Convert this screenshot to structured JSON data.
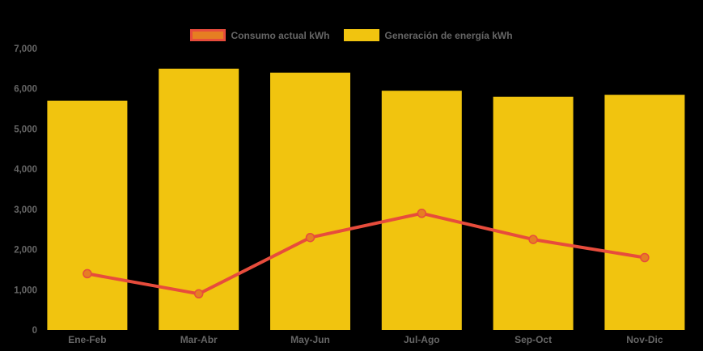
{
  "colors": {
    "background": "#000000",
    "text": "#666666",
    "bar_yellow": "#f1c40f",
    "line_red": "#e74c3c",
    "marker_orange": "#e67e22"
  },
  "legend": {
    "position": "top-center",
    "items": [
      {
        "label": "Consumo actual kWh",
        "fill": "#e67e22",
        "border": "#e74c3c",
        "series_type": "line"
      },
      {
        "label": "Generación de energía kWh",
        "fill": "#f1c40f",
        "border": "#f1c40f",
        "series_type": "bar"
      }
    ]
  },
  "chart_data": {
    "type": "bar",
    "subtype": "bar-with-line-overlay",
    "title": "",
    "xlabel": "",
    "ylabel": "",
    "categories": [
      "Ene-Feb",
      "Mar-Abr",
      "May-Jun",
      "Jul-Ago",
      "Sep-Oct",
      "Nov-Dic"
    ],
    "series": [
      {
        "name": "Generación de energía kWh",
        "type": "bar",
        "color": "#f1c40f",
        "values": [
          5700,
          6500,
          6400,
          5950,
          5800,
          5850
        ]
      },
      {
        "name": "Consumo actual kWh",
        "type": "line",
        "color": "#e74c3c",
        "marker_color": "#e67e22",
        "values": [
          1400,
          900,
          2300,
          2900,
          2250,
          1800
        ]
      }
    ],
    "ylim": [
      0,
      7000
    ],
    "y_tick_labels": [
      "0",
      "1,000",
      "2,000",
      "3,000",
      "4,000",
      "5,000",
      "6,000",
      "7,000"
    ],
    "grid": false,
    "legend_position": "top"
  }
}
